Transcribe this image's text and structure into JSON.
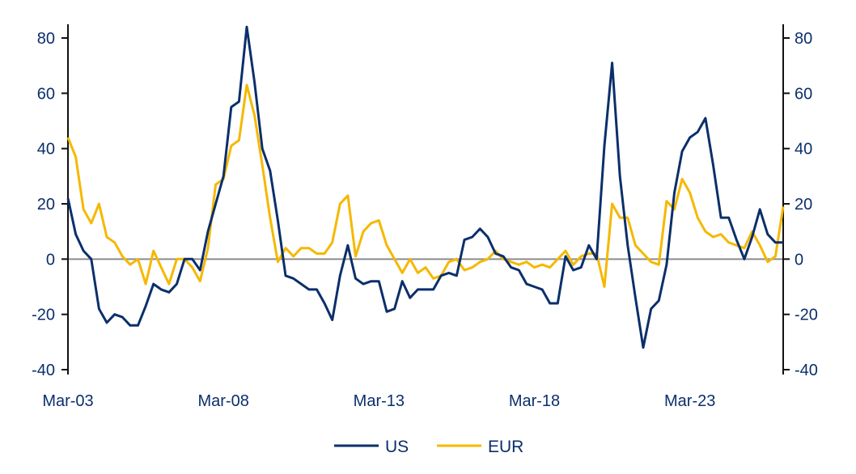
{
  "chart_data": {
    "type": "line",
    "title": "",
    "xlabel": "",
    "ylabel": "",
    "ylim": [
      -40,
      80
    ],
    "y_ticks": [
      -40,
      -20,
      0,
      20,
      40,
      60,
      80
    ],
    "y_tick_labels": [
      "-40",
      "-20",
      "0",
      "20",
      "40",
      "60",
      "80"
    ],
    "x_tick_labels": [
      "Mar-03",
      "Mar-08",
      "Mar-13",
      "Mar-18",
      "Mar-23"
    ],
    "x_tick_dates": [
      "2003-03",
      "2008-03",
      "2013-03",
      "2018-03",
      "2023-03"
    ],
    "x_start": "2003-03",
    "x_end": "2026-03",
    "frequency": "quarterly",
    "zero_line": true,
    "dual_axis": true,
    "legend_position": "bottom-center",
    "series": [
      {
        "name": "US",
        "color": "#0b2f6b",
        "values": [
          22,
          9,
          3,
          0,
          -18,
          -23,
          -20,
          -21,
          -24,
          -24,
          -17,
          -9,
          -11,
          -12,
          -9,
          0,
          0,
          -4,
          10,
          20,
          30,
          55,
          57,
          84,
          64,
          40,
          32,
          14,
          -6,
          -7,
          -9,
          -11,
          -11,
          -16,
          -22,
          -6,
          5,
          -7,
          -9,
          -8,
          -8,
          -19,
          -18,
          -8,
          -14,
          -11,
          -11,
          -11,
          -6,
          -5,
          -6,
          7,
          8,
          11,
          8,
          2,
          1,
          -3,
          -4,
          -9,
          -10,
          -11,
          -16,
          -16,
          1,
          -4,
          -3,
          5,
          0,
          41,
          71,
          30,
          5,
          -14,
          -32,
          -18,
          -15,
          -2,
          24,
          39,
          44,
          46,
          51,
          34,
          15,
          15,
          7,
          0,
          8,
          18,
          9,
          6,
          6
        ]
      },
      {
        "name": "EUR",
        "color": "#f5b800",
        "values": [
          44,
          37,
          18,
          13,
          20,
          8,
          6,
          1,
          -2,
          0,
          -9,
          3,
          -3,
          -9,
          0,
          0,
          -3,
          -8,
          4,
          27,
          29,
          41,
          43,
          63,
          52,
          34,
          15,
          -1,
          4,
          1,
          4,
          4,
          2,
          2,
          6,
          20,
          23,
          1,
          10,
          13,
          14,
          5,
          0,
          -5,
          0,
          -5,
          -3,
          -7,
          -6,
          -1,
          0,
          -4,
          -3,
          -1,
          0,
          3,
          0,
          -1,
          -2,
          -1,
          -3,
          -2,
          -3,
          0,
          3,
          -2,
          1,
          2,
          2,
          -10,
          20,
          15,
          15,
          5,
          2,
          -1,
          -2,
          21,
          18,
          29,
          24,
          15,
          10,
          8,
          9,
          6,
          5,
          4,
          10,
          5,
          -1,
          1,
          19
        ]
      }
    ]
  }
}
